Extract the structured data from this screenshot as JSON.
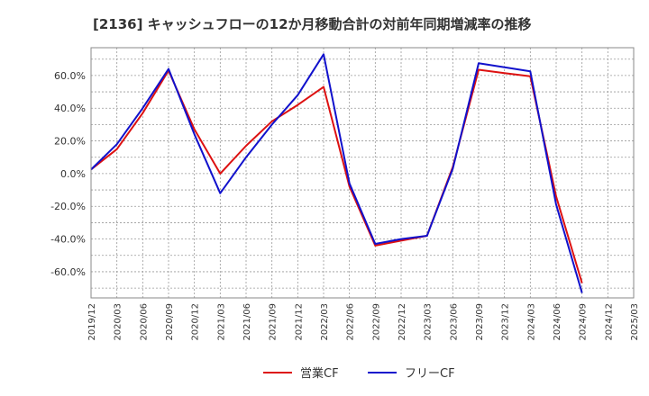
{
  "chart_data": {
    "type": "line",
    "title": "[2136]  キャッシュフローの12か月移動合計の対前年同期増減率の推移",
    "xlabel": "",
    "ylabel": "",
    "y_unit": "%",
    "ylim": [
      -76,
      77
    ],
    "yticks": [
      -60,
      -40,
      -20,
      0,
      20,
      40,
      60
    ],
    "ytick_labels": [
      "-60.0%",
      "-40.0%",
      "-20.0%",
      "0.0%",
      "20.0%",
      "40.0%",
      "60.0%"
    ],
    "categories": [
      "2019/12",
      "2020/03",
      "2020/06",
      "2020/09",
      "2020/12",
      "2021/03",
      "2021/06",
      "2021/09",
      "2021/12",
      "2022/03",
      "2022/06",
      "2022/09",
      "2022/12",
      "2023/03",
      "2023/06",
      "2023/09",
      "2023/12",
      "2024/03",
      "2024/06",
      "2024/09",
      "2024/12",
      "2025/03"
    ],
    "grid": true,
    "legend_position": "bottom",
    "series": [
      {
        "name": "営業CF",
        "color": "#dd1111",
        "values": [
          2.5,
          15,
          37,
          63,
          27,
          0,
          17,
          32,
          42,
          53,
          -8,
          -44,
          -41,
          -38,
          4,
          63.5,
          61.5,
          59.5,
          -14,
          -67,
          null,
          null
        ]
      },
      {
        "name": "フリーCF",
        "color": "#1111cc",
        "values": [
          2.5,
          18,
          40,
          64,
          24,
          -12,
          10,
          30,
          48,
          73,
          -6,
          -43,
          -40,
          -38,
          3,
          67.5,
          65,
          62.5,
          -19,
          -73,
          null,
          null
        ]
      }
    ]
  }
}
